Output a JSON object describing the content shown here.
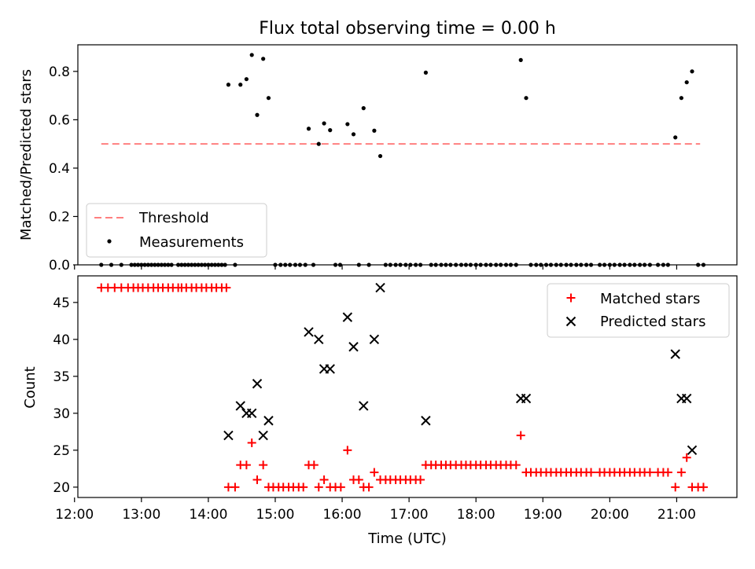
{
  "chart_data": [
    {
      "type": "scatter",
      "title": "Flux total observing time = 0.00 h",
      "ylabel": "Matched/Predicted stars",
      "ylim": [
        0,
        0.91
      ],
      "yticks": [
        "0.0",
        "0.2",
        "0.4",
        "0.6",
        "0.8"
      ],
      "ytick_values": [
        0,
        0.2,
        0.4,
        0.6,
        0.8
      ],
      "legend_placement": "lower-left",
      "grid": false,
      "colors": {
        "threshold": "#ff7f7f",
        "measurements": "#000000"
      },
      "threshold": {
        "name": "Threshold",
        "value": 0.5,
        "x_range": [
          12.4,
          21.35
        ]
      },
      "series": [
        {
          "name": "Measurements",
          "points": [
            [
              12.4,
              0
            ],
            [
              12.55,
              0
            ],
            [
              12.7,
              0
            ],
            [
              12.85,
              0
            ],
            [
              12.9,
              0
            ],
            [
              12.95,
              0
            ],
            [
              13.0,
              0
            ],
            [
              13.05,
              0
            ],
            [
              13.1,
              0
            ],
            [
              13.15,
              0
            ],
            [
              13.2,
              0
            ],
            [
              13.25,
              0
            ],
            [
              13.3,
              0
            ],
            [
              13.35,
              0
            ],
            [
              13.4,
              0
            ],
            [
              13.45,
              0
            ],
            [
              13.55,
              0
            ],
            [
              13.6,
              0
            ],
            [
              13.65,
              0
            ],
            [
              13.7,
              0
            ],
            [
              13.75,
              0
            ],
            [
              13.8,
              0
            ],
            [
              13.85,
              0
            ],
            [
              13.9,
              0
            ],
            [
              13.95,
              0
            ],
            [
              14.0,
              0
            ],
            [
              14.05,
              0
            ],
            [
              14.1,
              0
            ],
            [
              14.15,
              0
            ],
            [
              14.2,
              0
            ],
            [
              14.25,
              0
            ],
            [
              14.3,
              0.745
            ],
            [
              14.4,
              0
            ],
            [
              14.48,
              0.745
            ],
            [
              14.57,
              0.768
            ],
            [
              14.65,
              0.868
            ],
            [
              14.73,
              0.62
            ],
            [
              14.82,
              0.852
            ],
            [
              14.9,
              0.69
            ],
            [
              15.0,
              0
            ],
            [
              15.08,
              0
            ],
            [
              15.15,
              0
            ],
            [
              15.22,
              0
            ],
            [
              15.3,
              0
            ],
            [
              15.37,
              0
            ],
            [
              15.45,
              0
            ],
            [
              15.5,
              0.563
            ],
            [
              15.57,
              0
            ],
            [
              15.65,
              0.5
            ],
            [
              15.73,
              0.585
            ],
            [
              15.82,
              0.557
            ],
            [
              15.9,
              0
            ],
            [
              15.97,
              0
            ],
            [
              16.08,
              0.582
            ],
            [
              16.17,
              0.54
            ],
            [
              16.25,
              0
            ],
            [
              16.32,
              0.648
            ],
            [
              16.4,
              0
            ],
            [
              16.48,
              0.555
            ],
            [
              16.57,
              0.45
            ],
            [
              16.65,
              0
            ],
            [
              16.72,
              0
            ],
            [
              16.8,
              0
            ],
            [
              16.87,
              0
            ],
            [
              16.95,
              0
            ],
            [
              17.02,
              0
            ],
            [
              17.1,
              0
            ],
            [
              17.17,
              0
            ],
            [
              17.25,
              0.795
            ],
            [
              17.33,
              0
            ],
            [
              17.4,
              0
            ],
            [
              17.48,
              0
            ],
            [
              17.55,
              0
            ],
            [
              17.62,
              0
            ],
            [
              17.7,
              0
            ],
            [
              17.78,
              0
            ],
            [
              17.85,
              0
            ],
            [
              17.92,
              0
            ],
            [
              18.0,
              0
            ],
            [
              18.07,
              0
            ],
            [
              18.15,
              0
            ],
            [
              18.22,
              0
            ],
            [
              18.3,
              0
            ],
            [
              18.37,
              0
            ],
            [
              18.45,
              0
            ],
            [
              18.52,
              0
            ],
            [
              18.6,
              0
            ],
            [
              18.67,
              0.847
            ],
            [
              18.75,
              0.69
            ],
            [
              18.82,
              0
            ],
            [
              18.9,
              0
            ],
            [
              18.97,
              0
            ],
            [
              19.05,
              0
            ],
            [
              19.12,
              0
            ],
            [
              19.2,
              0
            ],
            [
              19.27,
              0
            ],
            [
              19.35,
              0
            ],
            [
              19.42,
              0
            ],
            [
              19.5,
              0
            ],
            [
              19.57,
              0
            ],
            [
              19.65,
              0
            ],
            [
              19.72,
              0
            ],
            [
              19.85,
              0
            ],
            [
              19.92,
              0
            ],
            [
              20.0,
              0
            ],
            [
              20.07,
              0
            ],
            [
              20.15,
              0
            ],
            [
              20.22,
              0
            ],
            [
              20.3,
              0
            ],
            [
              20.37,
              0
            ],
            [
              20.45,
              0
            ],
            [
              20.52,
              0
            ],
            [
              20.6,
              0
            ],
            [
              20.72,
              0
            ],
            [
              20.8,
              0
            ],
            [
              20.87,
              0
            ],
            [
              20.98,
              0.527
            ],
            [
              21.07,
              0.69
            ],
            [
              21.15,
              0.755
            ],
            [
              21.23,
              0.8
            ],
            [
              21.32,
              0
            ],
            [
              21.4,
              0
            ]
          ]
        }
      ]
    },
    {
      "type": "scatter",
      "xlabel": "Time (UTC)",
      "ylabel": "Count",
      "xlim": [
        12.05,
        21.9
      ],
      "xticks": [
        "12:00",
        "13:00",
        "14:00",
        "15:00",
        "16:00",
        "17:00",
        "18:00",
        "19:00",
        "20:00",
        "21:00"
      ],
      "xtick_values": [
        12,
        13,
        14,
        15,
        16,
        17,
        18,
        19,
        20,
        21
      ],
      "ylim": [
        18.6,
        48.6
      ],
      "yticks": [
        "20",
        "25",
        "30",
        "35",
        "40",
        "45"
      ],
      "ytick_values": [
        20,
        25,
        30,
        35,
        40,
        45
      ],
      "legend_placement": "upper-right",
      "grid": false,
      "colors": {
        "matched": "#ff0000",
        "predicted": "#000000"
      },
      "series": [
        {
          "name": "Matched stars",
          "points": [
            [
              12.4,
              47
            ],
            [
              12.5,
              47
            ],
            [
              12.6,
              47
            ],
            [
              12.7,
              47
            ],
            [
              12.8,
              47
            ],
            [
              12.88,
              47
            ],
            [
              12.95,
              47
            ],
            [
              13.02,
              47
            ],
            [
              13.1,
              47
            ],
            [
              13.18,
              47
            ],
            [
              13.25,
              47
            ],
            [
              13.32,
              47
            ],
            [
              13.4,
              47
            ],
            [
              13.47,
              47
            ],
            [
              13.55,
              47
            ],
            [
              13.6,
              47
            ],
            [
              13.67,
              47
            ],
            [
              13.75,
              47
            ],
            [
              13.82,
              47
            ],
            [
              13.9,
              47
            ],
            [
              13.97,
              47
            ],
            [
              14.05,
              47
            ],
            [
              14.12,
              47
            ],
            [
              14.2,
              47
            ],
            [
              14.27,
              47
            ],
            [
              14.3,
              20
            ],
            [
              14.4,
              20
            ],
            [
              14.48,
              23
            ],
            [
              14.57,
              23
            ],
            [
              14.65,
              26
            ],
            [
              14.73,
              21
            ],
            [
              14.82,
              23
            ],
            [
              14.9,
              20
            ],
            [
              14.97,
              20
            ],
            [
              15.05,
              20
            ],
            [
              15.12,
              20
            ],
            [
              15.2,
              20
            ],
            [
              15.27,
              20
            ],
            [
              15.35,
              20
            ],
            [
              15.42,
              20
            ],
            [
              15.5,
              23
            ],
            [
              15.58,
              23
            ],
            [
              15.65,
              20
            ],
            [
              15.73,
              21
            ],
            [
              15.82,
              20
            ],
            [
              15.9,
              20
            ],
            [
              15.98,
              20
            ],
            [
              16.08,
              25
            ],
            [
              16.17,
              21
            ],
            [
              16.25,
              21
            ],
            [
              16.32,
              20
            ],
            [
              16.4,
              20
            ],
            [
              16.48,
              22
            ],
            [
              16.57,
              21
            ],
            [
              16.65,
              21
            ],
            [
              16.72,
              21
            ],
            [
              16.8,
              21
            ],
            [
              16.87,
              21
            ],
            [
              16.95,
              21
            ],
            [
              17.02,
              21
            ],
            [
              17.1,
              21
            ],
            [
              17.17,
              21
            ],
            [
              17.25,
              23
            ],
            [
              17.33,
              23
            ],
            [
              17.4,
              23
            ],
            [
              17.48,
              23
            ],
            [
              17.55,
              23
            ],
            [
              17.62,
              23
            ],
            [
              17.7,
              23
            ],
            [
              17.78,
              23
            ],
            [
              17.85,
              23
            ],
            [
              17.92,
              23
            ],
            [
              18.0,
              23
            ],
            [
              18.07,
              23
            ],
            [
              18.15,
              23
            ],
            [
              18.22,
              23
            ],
            [
              18.3,
              23
            ],
            [
              18.37,
              23
            ],
            [
              18.45,
              23
            ],
            [
              18.52,
              23
            ],
            [
              18.6,
              23
            ],
            [
              18.67,
              27
            ],
            [
              18.75,
              22
            ],
            [
              18.82,
              22
            ],
            [
              18.9,
              22
            ],
            [
              18.97,
              22
            ],
            [
              19.05,
              22
            ],
            [
              19.12,
              22
            ],
            [
              19.2,
              22
            ],
            [
              19.27,
              22
            ],
            [
              19.35,
              22
            ],
            [
              19.42,
              22
            ],
            [
              19.5,
              22
            ],
            [
              19.57,
              22
            ],
            [
              19.65,
              22
            ],
            [
              19.72,
              22
            ],
            [
              19.85,
              22
            ],
            [
              19.92,
              22
            ],
            [
              20.0,
              22
            ],
            [
              20.07,
              22
            ],
            [
              20.15,
              22
            ],
            [
              20.22,
              22
            ],
            [
              20.3,
              22
            ],
            [
              20.37,
              22
            ],
            [
              20.45,
              22
            ],
            [
              20.52,
              22
            ],
            [
              20.6,
              22
            ],
            [
              20.72,
              22
            ],
            [
              20.8,
              22
            ],
            [
              20.87,
              22
            ],
            [
              20.98,
              20
            ],
            [
              21.07,
              22
            ],
            [
              21.15,
              24
            ],
            [
              21.23,
              20
            ],
            [
              21.32,
              20
            ],
            [
              21.4,
              20
            ]
          ]
        },
        {
          "name": "Predicted stars",
          "points": [
            [
              14.3,
              27
            ],
            [
              14.48,
              31
            ],
            [
              14.57,
              30
            ],
            [
              14.65,
              30
            ],
            [
              14.73,
              34
            ],
            [
              14.82,
              27
            ],
            [
              14.9,
              29
            ],
            [
              15.5,
              41
            ],
            [
              15.65,
              40
            ],
            [
              15.73,
              36
            ],
            [
              15.82,
              36
            ],
            [
              16.08,
              43
            ],
            [
              16.17,
              39
            ],
            [
              16.32,
              31
            ],
            [
              16.48,
              40
            ],
            [
              16.57,
              47
            ],
            [
              17.25,
              29
            ],
            [
              18.67,
              32
            ],
            [
              18.75,
              32
            ],
            [
              20.98,
              38
            ],
            [
              21.07,
              32
            ],
            [
              21.15,
              32
            ],
            [
              21.23,
              25
            ]
          ]
        }
      ]
    }
  ]
}
